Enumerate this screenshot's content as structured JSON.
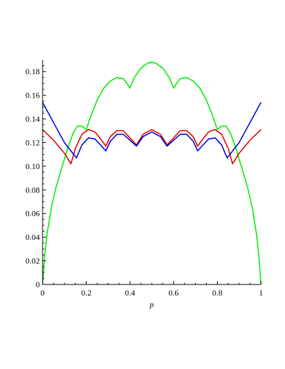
{
  "chart_data": {
    "type": "line",
    "title": "",
    "xlabel": "p",
    "ylabel": "",
    "xlim": [
      0,
      1
    ],
    "ylim": [
      0,
      0.19
    ],
    "grid": false,
    "legend": "none",
    "x_ticks": [
      "0",
      "0.2",
      "0.4",
      "0.6",
      "0.8",
      "1"
    ],
    "x_tick_values": [
      0,
      0.2,
      0.4,
      0.6,
      0.8,
      1
    ],
    "y_ticks": [
      "0",
      "0.02",
      "0.04",
      "0.06",
      "0.08",
      "0.10",
      "0.12",
      "0.14",
      "0.16",
      "0.18"
    ],
    "y_tick_values": [
      0,
      0.02,
      0.04,
      0.06,
      0.08,
      0.1,
      0.12,
      0.14,
      0.16,
      0.18
    ],
    "series": [
      {
        "color": "#00ee00",
        "x": [
          0,
          0.01,
          0.02,
          0.04,
          0.06,
          0.08,
          0.1,
          0.12,
          0.14,
          0.16,
          0.18,
          0.2,
          0.22,
          0.25,
          0.28,
          0.31,
          0.34,
          0.37,
          0.39,
          0.4,
          0.42,
          0.45,
          0.48,
          0.5,
          0.52,
          0.55,
          0.58,
          0.6,
          0.61,
          0.63,
          0.66,
          0.69,
          0.72,
          0.75,
          0.78,
          0.8,
          0.82,
          0.84,
          0.86,
          0.88,
          0.9,
          0.92,
          0.94,
          0.96,
          0.98,
          0.99,
          1
        ],
        "y": [
          0,
          0.025,
          0.042,
          0.065,
          0.081,
          0.094,
          0.106,
          0.118,
          0.128,
          0.134,
          0.134,
          0.131,
          0.142,
          0.156,
          0.166,
          0.172,
          0.175,
          0.174,
          0.169,
          0.166,
          0.175,
          0.183,
          0.187,
          0.188,
          0.187,
          0.183,
          0.175,
          0.166,
          0.169,
          0.174,
          0.175,
          0.172,
          0.166,
          0.156,
          0.142,
          0.131,
          0.134,
          0.134,
          0.128,
          0.118,
          0.106,
          0.094,
          0.081,
          0.065,
          0.042,
          0.025,
          0
        ]
      },
      {
        "color": "#dd0000",
        "x": [
          0,
          0.05,
          0.1,
          0.13,
          0.15,
          0.18,
          0.21,
          0.24,
          0.27,
          0.29,
          0.31,
          0.34,
          0.37,
          0.4,
          0.43,
          0.46,
          0.5,
          0.54,
          0.57,
          0.6,
          0.63,
          0.66,
          0.69,
          0.71,
          0.73,
          0.76,
          0.79,
          0.82,
          0.85,
          0.87,
          0.9,
          0.95,
          1
        ],
        "y": [
          0.131,
          0.122,
          0.111,
          0.102,
          0.115,
          0.127,
          0.131,
          0.129,
          0.122,
          0.117,
          0.125,
          0.13,
          0.13,
          0.124,
          0.118,
          0.127,
          0.131,
          0.127,
          0.118,
          0.124,
          0.13,
          0.13,
          0.125,
          0.117,
          0.122,
          0.129,
          0.131,
          0.127,
          0.115,
          0.102,
          0.111,
          0.122,
          0.131
        ]
      },
      {
        "color": "#0000dd",
        "x": [
          0,
          0.05,
          0.1,
          0.155,
          0.18,
          0.21,
          0.24,
          0.27,
          0.29,
          0.31,
          0.34,
          0.37,
          0.4,
          0.43,
          0.46,
          0.5,
          0.54,
          0.57,
          0.6,
          0.63,
          0.66,
          0.69,
          0.71,
          0.73,
          0.76,
          0.79,
          0.82,
          0.845,
          0.9,
          0.95,
          1
        ],
        "y": [
          0.154,
          0.137,
          0.12,
          0.107,
          0.118,
          0.124,
          0.123,
          0.117,
          0.113,
          0.121,
          0.127,
          0.127,
          0.122,
          0.117,
          0.125,
          0.129,
          0.125,
          0.117,
          0.122,
          0.127,
          0.127,
          0.121,
          0.113,
          0.117,
          0.123,
          0.124,
          0.118,
          0.107,
          0.12,
          0.137,
          0.154
        ]
      }
    ]
  }
}
